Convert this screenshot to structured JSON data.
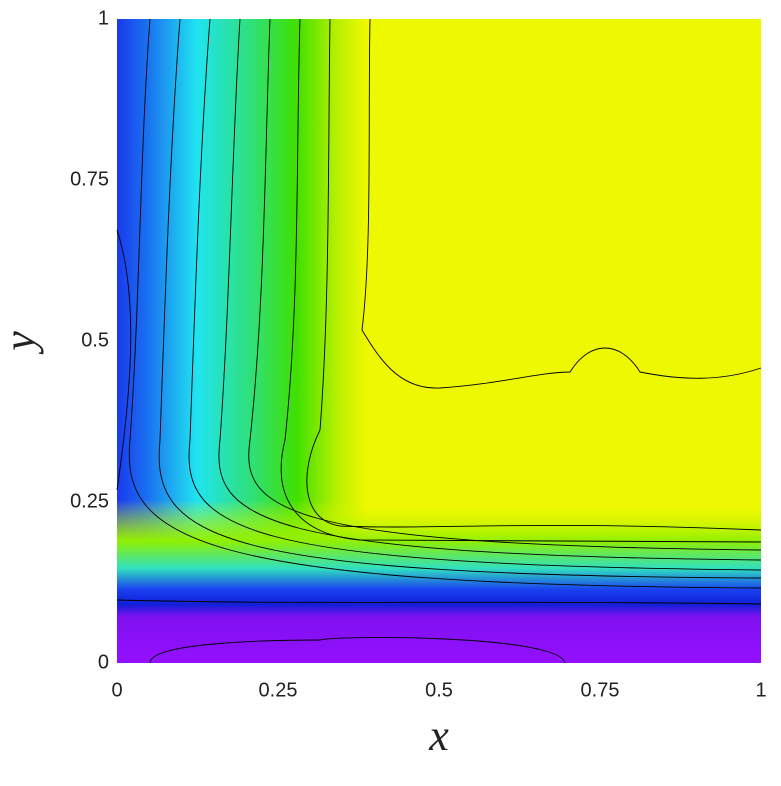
{
  "chart_data": {
    "type": "contour",
    "xlabel": "x",
    "ylabel": "y",
    "xlim": [
      0,
      1
    ],
    "ylim": [
      0,
      1
    ],
    "xticks": [
      0,
      0.25,
      0.5,
      0.75,
      1
    ],
    "yticks": [
      0,
      0.25,
      0.5,
      0.75,
      1
    ],
    "grid": false
  }
}
